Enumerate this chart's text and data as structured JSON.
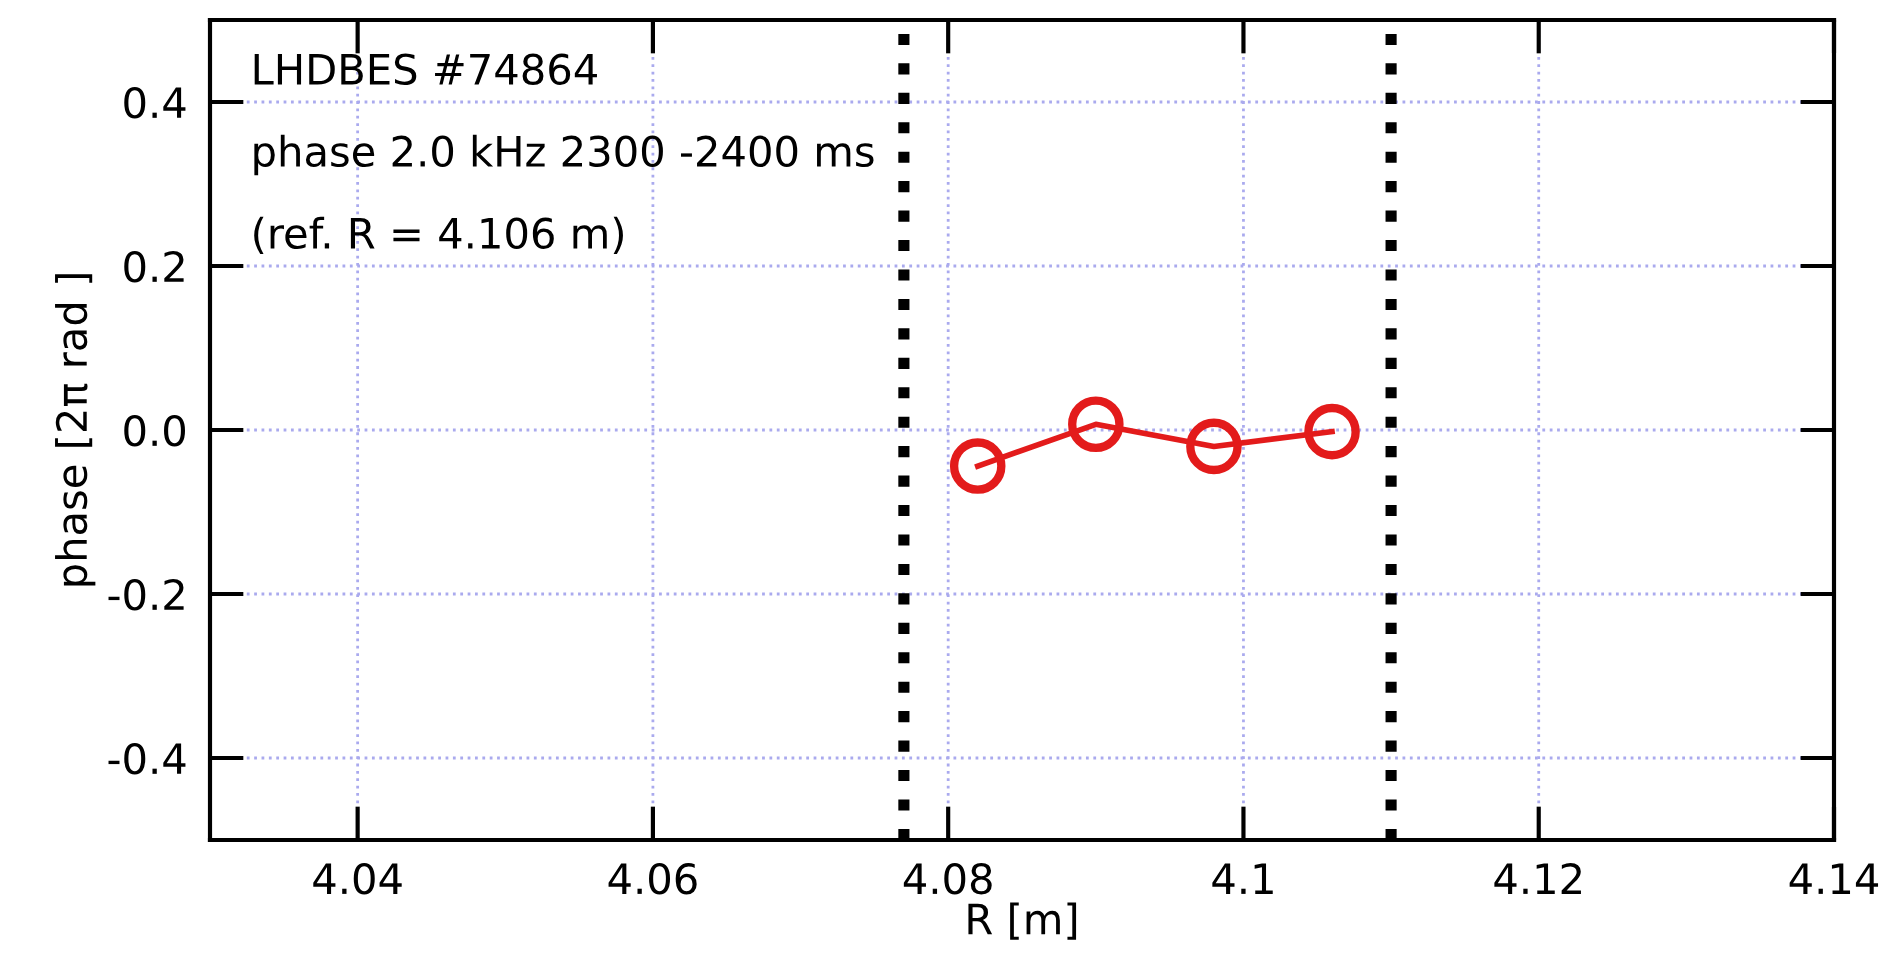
{
  "chart_data": {
    "type": "line",
    "xlabel": "R [m]",
    "ylabel": "phase [2π rad ]",
    "annotations": [
      "LHDBES #74864",
      "phase 2.0 kHz 2300 -2400 ms",
      "(ref. R = 4.106 m)"
    ],
    "x": [
      4.082,
      4.09,
      4.098,
      4.106
    ],
    "series": [
      {
        "color": "#e31b1b",
        "values": [
          -0.044,
          0.007,
          -0.02,
          -0.002
        ]
      }
    ],
    "marker": "circle",
    "xlim": [
      4.03,
      4.14
    ],
    "xticks": [
      4.04,
      4.06,
      4.08,
      4.1,
      4.12,
      4.14
    ],
    "ylim": [
      -0.5,
      0.5
    ],
    "yticks": [
      {
        "value": 0.4,
        "label": "0.4"
      },
      {
        "value": 0.2,
        "label": "0.2"
      },
      {
        "value": 0.0,
        "label": "0.0"
      },
      {
        "value": -0.2,
        "label": "-0.2"
      },
      {
        "value": -0.4,
        "label": "-0.4"
      }
    ],
    "ref_lines": [
      {
        "axis": "x",
        "value": 4.077,
        "color": "#000000",
        "line_style": "dotted"
      },
      {
        "axis": "x",
        "value": 4.11,
        "color": "#000000",
        "line_style": "dotted"
      }
    ],
    "grid": true
  }
}
